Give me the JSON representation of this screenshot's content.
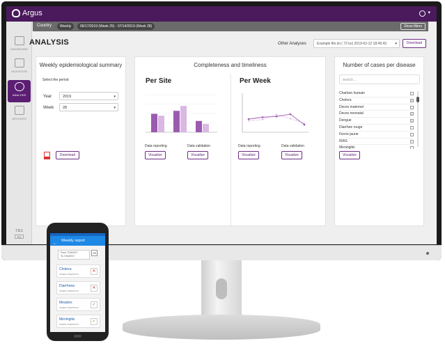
{
  "app": {
    "name": "Argus"
  },
  "sidebar": {
    "items": [
      {
        "label": "DASHBOARD",
        "icon": "dashboard-icon"
      },
      {
        "label": "VALIDATION",
        "icon": "validation-icon"
      },
      {
        "label": "ANALYSIS",
        "icon": "analysis-icon"
      },
      {
        "label": "ARCHIVES",
        "icon": "archives-icon"
      }
    ],
    "version": "7.8.1",
    "version_sub": "EN"
  },
  "filterbar": {
    "country_label": "Country",
    "period_pill": "Weekly",
    "range_pill": "06/17/2019 (Week 25) - 07/14/2019 (Week 28)",
    "show_filters": "Show filters"
  },
  "header": {
    "title": "ANALYSIS",
    "other_label": "Other Analyses",
    "file_value": "Example file.txt ( 72 ko) 2019-02-12 18:45:43",
    "download_label": "Download"
  },
  "weekly_panel": {
    "title": "Weekly epidemiological summary",
    "select_label": "Select the period",
    "year_label": "Year",
    "year_value": "2019",
    "week_label": "Week",
    "week_value": "28",
    "download_label": "Download"
  },
  "completeness_panel": {
    "title": "Completeness and timeliness",
    "per_site": {
      "title": "Per Site",
      "label_reporting": "Data reporting",
      "label_validation": "Data validation",
      "visualize_1": "Visualize",
      "visualize_2": "Visualize"
    },
    "per_week": {
      "title": "Per Week",
      "label_reporting": "Data reporting",
      "label_validation": "Data validation",
      "visualize_1": "Visualize",
      "visualize_2": "Visualize"
    }
  },
  "cases_panel": {
    "title": "Number of cases per disease",
    "search_placeholder": "search...",
    "diseases": [
      {
        "name": "Charbon humain",
        "checked": false
      },
      {
        "name": "Cholera",
        "checked": true
      },
      {
        "name": "Deces maternel",
        "checked": false
      },
      {
        "name": "Deces neonatal",
        "checked": true
      },
      {
        "name": "Dengue",
        "checked": true
      },
      {
        "name": "Diarrhee rouge",
        "checked": false
      },
      {
        "name": "Fievre jaune",
        "checked": false
      },
      {
        "name": "IRAS",
        "checked": false
      },
      {
        "name": "Meningitis",
        "checked": false
      }
    ],
    "visualize_label": "Visualize"
  },
  "phone": {
    "title": "Weekly report",
    "period_line1": "From 7/15/2017",
    "period_line2": "To 7/16/2017",
    "calendar_day": "28",
    "reports": [
      {
        "name": "Cholera",
        "sub": "CASES 0 DEATHS 0",
        "status": "x"
      },
      {
        "name": "Diarrhoea",
        "sub": "CASES 0 DEATHS 0",
        "status": "x"
      },
      {
        "name": "Measles",
        "sub": "CASES 0 DEATHS 0",
        "status": "ok"
      },
      {
        "name": "Meningitis",
        "sub": "CASES 0 DEATHS 0",
        "status": "ok"
      }
    ]
  },
  "colors": {
    "brand": "#5b1e72",
    "bar_dark": "#9b5bb0",
    "bar_light": "#d9b8e3",
    "line": "#b07cc0"
  },
  "site_chart": {
    "groups": [
      {
        "dark": 0.49,
        "light": 0.44
      },
      {
        "dark": 0.57,
        "light": 0.7
      },
      {
        "dark": 0.3,
        "light": 0.22
      }
    ]
  },
  "week_chart": {
    "series_a": [
      0.35,
      0.4,
      0.42,
      0.48,
      0.2
    ],
    "series_b": [
      0.3,
      0.34,
      0.47,
      0.36,
      0.24
    ]
  }
}
